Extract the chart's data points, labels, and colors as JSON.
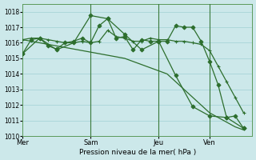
{
  "background_color": "#cce8ea",
  "grid_color": "#a8d4d8",
  "line_color": "#2d6e2d",
  "xlabel_text": "Pression niveau de la mer( hPa )",
  "ylim": [
    1010,
    1018.5
  ],
  "yticks": [
    1010,
    1011,
    1012,
    1013,
    1014,
    1015,
    1016,
    1017,
    1018
  ],
  "day_labels": [
    "Mer",
    "Sam",
    "Jeu",
    "Ven"
  ],
  "day_positions": [
    0,
    8,
    16,
    22
  ],
  "xlim": [
    0,
    27
  ],
  "vline_positions": [
    8,
    16,
    22
  ],
  "vline_color": "#3a7a3a",
  "series": [
    {
      "x": [
        0,
        1,
        2,
        3,
        4,
        5,
        6,
        7,
        8,
        9,
        10,
        11,
        12,
        13,
        14,
        15,
        16,
        17,
        18,
        19,
        20,
        21,
        22,
        23,
        24,
        25,
        26
      ],
      "y": [
        1015.3,
        1016.2,
        1016.3,
        1015.8,
        1015.6,
        1016.0,
        1016.1,
        1016.3,
        1016.0,
        1017.1,
        1017.55,
        1016.3,
        1016.4,
        1015.55,
        1016.2,
        1016.1,
        1016.1,
        1016.1,
        1017.1,
        1017.0,
        1017.0,
        1016.1,
        1014.8,
        1013.3,
        1011.2,
        1011.3,
        1010.5
      ],
      "marker": "D",
      "markersize": 2.5,
      "linewidth": 0.9
    },
    {
      "x": [
        0,
        1,
        2,
        3,
        4,
        5,
        6,
        7,
        8,
        9,
        10,
        11,
        12,
        13,
        14,
        15,
        16,
        17,
        18,
        19,
        20,
        21,
        22,
        23,
        24,
        25,
        26
      ],
      "y": [
        1016.2,
        1016.3,
        1016.3,
        1016.2,
        1016.1,
        1016.0,
        1016.0,
        1016.1,
        1016.0,
        1016.1,
        1016.8,
        1016.4,
        1016.3,
        1016.1,
        1016.1,
        1016.3,
        1016.2,
        1016.2,
        1016.1,
        1016.1,
        1016.0,
        1015.9,
        1015.5,
        1014.5,
        1013.5,
        1012.5,
        1011.5
      ],
      "marker": "+",
      "markersize": 3.5,
      "linewidth": 0.9
    },
    {
      "x": [
        0,
        1,
        2,
        3,
        4,
        5,
        6,
        7,
        8,
        9,
        10,
        11,
        12,
        13,
        14,
        15,
        16,
        17,
        18,
        19,
        20,
        21,
        22,
        23,
        24,
        25,
        26
      ],
      "y": [
        1016.2,
        1016.1,
        1016.0,
        1015.9,
        1015.8,
        1015.7,
        1015.6,
        1015.5,
        1015.4,
        1015.3,
        1015.2,
        1015.1,
        1015.0,
        1014.8,
        1014.6,
        1014.4,
        1014.2,
        1014.0,
        1013.5,
        1013.0,
        1012.5,
        1012.0,
        1011.5,
        1011.2,
        1010.9,
        1010.6,
        1010.4
      ],
      "marker": "None",
      "markersize": 0,
      "linewidth": 0.9
    },
    {
      "x": [
        0,
        2,
        4,
        6,
        8,
        10,
        12,
        14,
        16,
        18,
        20,
        22,
        24,
        26
      ],
      "y": [
        1015.3,
        1016.3,
        1015.55,
        1016.0,
        1017.75,
        1017.55,
        1016.55,
        1015.55,
        1016.1,
        1013.9,
        1011.9,
        1011.3,
        1011.2,
        1010.5
      ],
      "marker": "D",
      "markersize": 2.5,
      "linewidth": 0.9
    }
  ]
}
